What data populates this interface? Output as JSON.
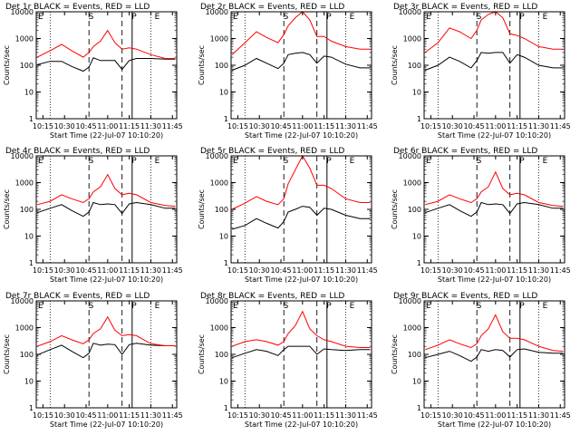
{
  "ylabel": "Counts/sec",
  "xlabel": "Start Time (22-Jul-07 10:10:20)",
  "x_tick_labels": [
    "10:15",
    "10:30",
    "10:45",
    "11:00",
    "11:15",
    "11:30",
    "11:45"
  ],
  "y_tick_labels": [
    "1",
    "10",
    "100",
    "1000",
    "10000"
  ],
  "marker_letters": [
    "E",
    "S",
    "P",
    "E"
  ],
  "colors": {
    "events": "#000000",
    "lld": "#ff0000",
    "axes": "#000000",
    "background": "#ffffff"
  },
  "chart_data": [
    {
      "type": "line",
      "title": "Det 1r BLACK = Events, RED = LLD",
      "ylog": true,
      "ylim": [
        1,
        10000
      ],
      "xlim": [
        "10:10:20",
        "11:48:00"
      ],
      "x": [
        "10:11",
        "10:20",
        "10:28",
        "10:35",
        "10:43",
        "10:47",
        "10:50",
        "10:55",
        "11:00",
        "11:05",
        "11:10",
        "11:15",
        "11:20",
        "11:30",
        "11:40",
        "11:47"
      ],
      "series": [
        {
          "name": "Events",
          "values": [
            105,
            140,
            140,
            90,
            60,
            85,
            190,
            150,
            150,
            150,
            70,
            150,
            180,
            180,
            170,
            170
          ]
        },
        {
          "name": "LLD",
          "values": [
            200,
            350,
            600,
            350,
            200,
            300,
            500,
            800,
            2000,
            700,
            400,
            450,
            400,
            250,
            180,
            180
          ]
        }
      ]
    },
    {
      "type": "line",
      "title": "Det 2r BLACK = Events, RED = LLD",
      "ylog": true,
      "ylim": [
        1,
        10000
      ],
      "xlim": [
        "10:10:20",
        "11:48:00"
      ],
      "x": [
        "10:11",
        "10:20",
        "10:28",
        "10:35",
        "10:43",
        "10:47",
        "10:50",
        "10:55",
        "11:00",
        "11:05",
        "11:10",
        "11:15",
        "11:20",
        "11:30",
        "11:40",
        "11:47"
      ],
      "series": [
        {
          "name": "Events",
          "values": [
            65,
            100,
            180,
            120,
            75,
            120,
            250,
            280,
            300,
            250,
            120,
            220,
            200,
            110,
            80,
            80
          ]
        },
        {
          "name": "LLD",
          "values": [
            250,
            700,
            1800,
            1100,
            700,
            1400,
            3000,
            6000,
            10000,
            5000,
            1200,
            1200,
            800,
            500,
            400,
            400
          ]
        }
      ]
    },
    {
      "type": "line",
      "title": "Det 3r BLACK = Events, RED = LLD",
      "ylog": true,
      "ylim": [
        1,
        10000
      ],
      "xlim": [
        "10:10:20",
        "11:48:00"
      ],
      "x": [
        "10:11",
        "10:20",
        "10:28",
        "10:35",
        "10:43",
        "10:47",
        "10:50",
        "10:55",
        "11:00",
        "11:05",
        "11:10",
        "11:15",
        "11:20",
        "11:30",
        "11:40",
        "11:47"
      ],
      "series": [
        {
          "name": "Events",
          "values": [
            65,
            100,
            200,
            140,
            80,
            150,
            300,
            280,
            300,
            300,
            120,
            250,
            200,
            100,
            80,
            80
          ]
        },
        {
          "name": "LLD",
          "values": [
            300,
            700,
            2500,
            1800,
            1000,
            2000,
            5000,
            8000,
            10000,
            6000,
            1500,
            1300,
            1000,
            500,
            400,
            400
          ]
        }
      ]
    },
    {
      "type": "line",
      "title": "Det 4r BLACK = Events, RED = LLD",
      "ylog": true,
      "ylim": [
        1,
        10000
      ],
      "xlim": [
        "10:10:20",
        "11:48:00"
      ],
      "x": [
        "10:11",
        "10:20",
        "10:28",
        "10:35",
        "10:43",
        "10:47",
        "10:50",
        "10:55",
        "11:00",
        "11:05",
        "11:10",
        "11:15",
        "11:20",
        "11:30",
        "11:40",
        "11:47"
      ],
      "series": [
        {
          "name": "Events",
          "values": [
            75,
            110,
            150,
            90,
            55,
            80,
            180,
            150,
            160,
            150,
            70,
            160,
            180,
            150,
            110,
            110
          ]
        },
        {
          "name": "LLD",
          "values": [
            150,
            200,
            350,
            250,
            180,
            250,
            450,
            700,
            2000,
            600,
            350,
            400,
            350,
            180,
            140,
            130
          ]
        }
      ]
    },
    {
      "type": "line",
      "title": "Det 5r BLACK = Events, RED = LLD",
      "ylog": true,
      "ylim": [
        1,
        10000
      ],
      "xlim": [
        "10:10:20",
        "11:48:00"
      ],
      "x": [
        "10:11",
        "10:20",
        "10:28",
        "10:35",
        "10:43",
        "10:47",
        "10:50",
        "10:55",
        "11:00",
        "11:05",
        "11:10",
        "11:15",
        "11:20",
        "11:30",
        "11:40",
        "11:47"
      ],
      "series": [
        {
          "name": "Events",
          "values": [
            18,
            25,
            45,
            30,
            20,
            35,
            80,
            100,
            130,
            120,
            60,
            110,
            100,
            60,
            45,
            45
          ]
        },
        {
          "name": "LLD",
          "values": [
            100,
            170,
            300,
            200,
            150,
            250,
            900,
            3000,
            10000,
            3500,
            800,
            800,
            600,
            250,
            180,
            180
          ]
        }
      ]
    },
    {
      "type": "line",
      "title": "Det 6r BLACK = Events, RED = LLD",
      "ylog": true,
      "ylim": [
        1,
        10000
      ],
      "xlim": [
        "10:10:20",
        "11:48:00"
      ],
      "x": [
        "10:11",
        "10:20",
        "10:28",
        "10:35",
        "10:43",
        "10:47",
        "10:50",
        "10:55",
        "11:00",
        "11:05",
        "11:10",
        "11:15",
        "11:20",
        "11:30",
        "11:40",
        "11:47"
      ],
      "series": [
        {
          "name": "Events",
          "values": [
            75,
            110,
            150,
            90,
            55,
            80,
            180,
            150,
            160,
            150,
            70,
            160,
            180,
            150,
            110,
            110
          ]
        },
        {
          "name": "LLD",
          "values": [
            150,
            200,
            350,
            250,
            180,
            250,
            450,
            700,
            2500,
            600,
            350,
            400,
            350,
            180,
            140,
            130
          ]
        }
      ]
    },
    {
      "type": "line",
      "title": "Det 7r BLACK = Events, RED = LLD",
      "ylog": true,
      "ylim": [
        1,
        10000
      ],
      "xlim": [
        "10:10:20",
        "11:48:00"
      ],
      "x": [
        "10:11",
        "10:20",
        "10:28",
        "10:35",
        "10:43",
        "10:47",
        "10:50",
        "10:55",
        "11:00",
        "11:05",
        "11:10",
        "11:15",
        "11:20",
        "11:30",
        "11:40",
        "11:47"
      ],
      "series": [
        {
          "name": "Events",
          "values": [
            95,
            150,
            220,
            130,
            75,
            110,
            260,
            220,
            240,
            230,
            100,
            230,
            260,
            220,
            210,
            210
          ]
        },
        {
          "name": "LLD",
          "values": [
            200,
            300,
            500,
            350,
            250,
            350,
            600,
            900,
            2500,
            800,
            500,
            550,
            500,
            250,
            210,
            210
          ]
        }
      ]
    },
    {
      "type": "line",
      "title": "Det 8r BLACK = Events, RED = LLD",
      "ylog": true,
      "ylim": [
        1,
        10000
      ],
      "xlim": [
        "10:10:20",
        "11:48:00"
      ],
      "x": [
        "10:11",
        "10:20",
        "10:28",
        "10:35",
        "10:43",
        "10:47",
        "10:50",
        "10:55",
        "11:00",
        "11:05",
        "11:10",
        "11:15",
        "11:20",
        "11:30",
        "11:40",
        "11:47"
      ],
      "series": [
        {
          "name": "Events",
          "values": [
            75,
            110,
            150,
            130,
            90,
            150,
            200,
            200,
            200,
            200,
            100,
            160,
            150,
            140,
            150,
            150
          ]
        },
        {
          "name": "LLD",
          "values": [
            200,
            300,
            350,
            300,
            220,
            300,
            600,
            1200,
            4000,
            900,
            500,
            350,
            300,
            200,
            180,
            180
          ]
        }
      ]
    },
    {
      "type": "line",
      "title": "Det 9r BLACK = Events, RED = LLD",
      "ylog": true,
      "ylim": [
        1,
        10000
      ],
      "xlim": [
        "10:10:20",
        "11:48:00"
      ],
      "x": [
        "10:11",
        "10:20",
        "10:28",
        "10:35",
        "10:43",
        "10:47",
        "10:50",
        "10:55",
        "11:00",
        "11:05",
        "11:10",
        "11:15",
        "11:20",
        "11:30",
        "11:40",
        "11:47"
      ],
      "series": [
        {
          "name": "Events",
          "values": [
            75,
            100,
            130,
            90,
            55,
            80,
            150,
            130,
            150,
            140,
            80,
            150,
            160,
            120,
            110,
            110
          ]
        },
        {
          "name": "LLD",
          "values": [
            150,
            220,
            350,
            250,
            180,
            250,
            500,
            900,
            3000,
            700,
            400,
            400,
            350,
            200,
            140,
            130
          ]
        }
      ]
    }
  ]
}
